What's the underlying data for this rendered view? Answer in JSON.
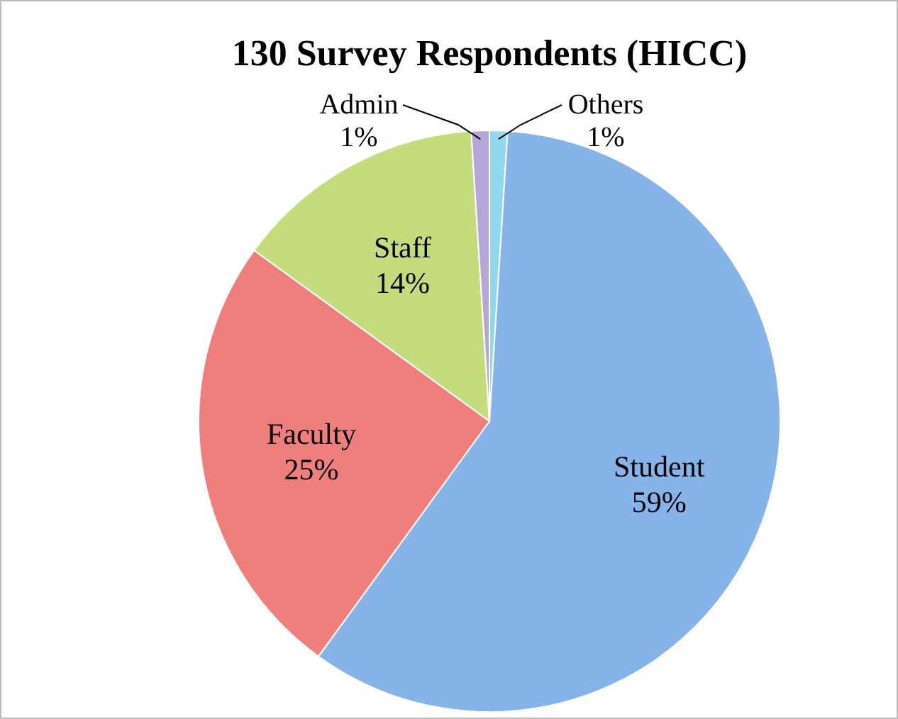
{
  "chart_data": {
    "type": "pie",
    "title": "130 Survey Respondents (HICC)",
    "categories": [
      "Others",
      "Student",
      "Faculty",
      "Staff",
      "Admin"
    ],
    "values": [
      1,
      59,
      25,
      14,
      1
    ],
    "value_labels": [
      "1%",
      "59%",
      "25%",
      "14%",
      "1%"
    ],
    "colors": [
      "#8fd8f0",
      "#86b3e8",
      "#ef7f7c",
      "#c5dc7c",
      "#b5a5d8"
    ],
    "legend": false
  }
}
